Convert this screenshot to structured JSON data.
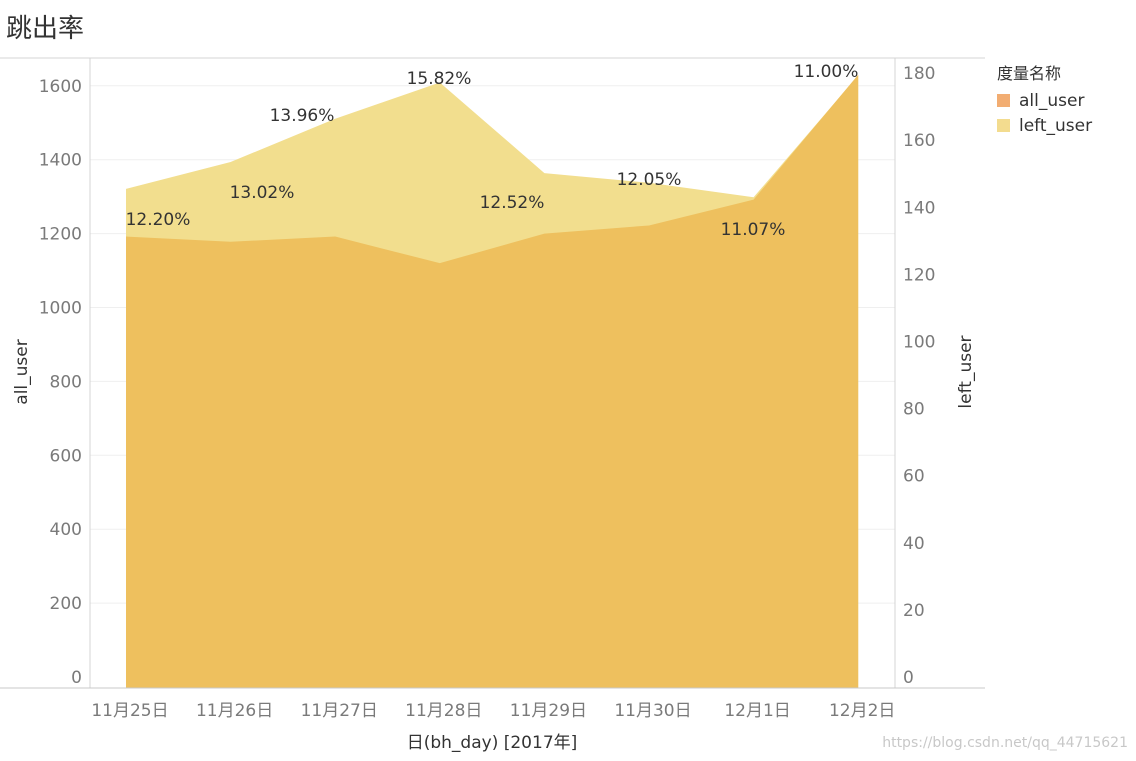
{
  "chart_data": {
    "type": "area",
    "title": "跳出率",
    "xlabel": "日(bh_day) [2017年]",
    "ylabel_left": "all_user",
    "ylabel_right": "left_user",
    "categories": [
      "11月25日",
      "11月26日",
      "11月27日",
      "11月28日",
      "11月29日",
      "11月30日",
      "12月1日",
      "12月2日"
    ],
    "ylim_left": [
      0,
      1700
    ],
    "ylim_right": [
      0,
      187
    ],
    "yticks_left": [
      0,
      200,
      400,
      600,
      800,
      1000,
      1200,
      1400,
      1600
    ],
    "yticks_right": [
      0,
      20,
      40,
      60,
      80,
      100,
      120,
      140,
      160,
      180
    ],
    "legend_title": "度量名称",
    "legend_position": "right",
    "grid": true,
    "series": [
      {
        "name": "all_user",
        "axis": "left",
        "color": "#EEC05E",
        "legend_color": "#F2AD72",
        "values": [
          1192,
          1178,
          1192,
          1120,
          1200,
          1222,
          1292,
          1630
        ]
      },
      {
        "name": "left_user",
        "axis": "right",
        "color": "#F2DE8E",
        "legend_color": "#F3DC8F",
        "values": [
          145.5,
          153.5,
          166.4,
          177.2,
          150.2,
          147.3,
          143,
          179.3
        ]
      }
    ],
    "data_labels": [
      "12.20%",
      "13.02%",
      "13.96%",
      "15.82%",
      "12.52%",
      "12.05%",
      "11.07%",
      "11.00%"
    ]
  },
  "watermark": "https://blog.csdn.net/qq_44715621"
}
